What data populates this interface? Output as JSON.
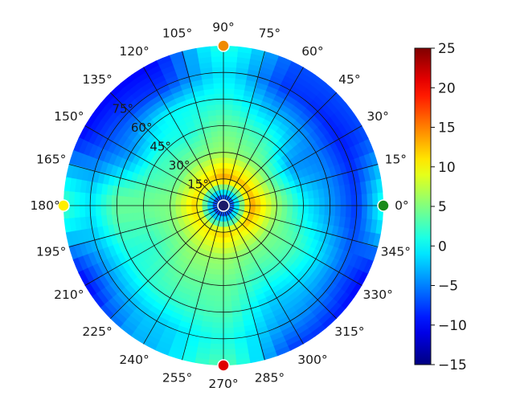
{
  "chart_data": {
    "type": "heatmap",
    "projection": "polar",
    "title": "",
    "angle_axis": {
      "unit": "deg",
      "tick_values": [
        0,
        15,
        30,
        45,
        60,
        75,
        90,
        105,
        120,
        135,
        150,
        165,
        180,
        195,
        210,
        225,
        240,
        255,
        270,
        285,
        300,
        315,
        330,
        345
      ],
      "tick_labels": [
        "0°",
        "15°",
        "30°",
        "45°",
        "60°",
        "75°",
        "90°",
        "105°",
        "120°",
        "135°",
        "150°",
        "165°",
        "180°",
        "195°",
        "210°",
        "225°",
        "240°",
        "255°",
        "270°",
        "285°",
        "300°",
        "315°",
        "330°",
        "345°"
      ]
    },
    "radial_axis": {
      "range": [
        0,
        90
      ],
      "tick_values": [
        15,
        30,
        45,
        60,
        75
      ],
      "tick_labels": [
        "15°",
        "30°",
        "45°",
        "60°",
        "75°"
      ],
      "label_angle_deg": 135
    },
    "grid": true,
    "colorbar": {
      "colormap": "jet",
      "range": [
        -15,
        25
      ],
      "tick_values": [
        -15,
        -10,
        -5,
        0,
        5,
        10,
        15,
        20,
        25
      ],
      "tick_labels": [
        "−15",
        "−10",
        "−5",
        "0",
        "5",
        "10",
        "15",
        "20",
        "25"
      ],
      "placement": "right"
    },
    "field_samples": {
      "description_note": "",
      "theta_deg": [
        0,
        30,
        60,
        90,
        120,
        150,
        180,
        210,
        240,
        270,
        300,
        330
      ],
      "r_deg": [
        0,
        15,
        30,
        45,
        60,
        75,
        90
      ],
      "values": [
        [
          -15,
          14,
          6,
          0,
          -4,
          -8,
          1
        ],
        [
          -15,
          13,
          4,
          -4,
          -5,
          -9,
          -7
        ],
        [
          -15,
          13,
          5,
          2,
          -3,
          -8,
          -7
        ],
        [
          -15,
          14,
          6,
          4,
          1,
          -1,
          1
        ],
        [
          -15,
          12,
          5,
          1,
          0,
          -8,
          -10
        ],
        [
          -15,
          11,
          4,
          2,
          -4,
          -7,
          -10
        ],
        [
          -15,
          12,
          5,
          4,
          4,
          -1,
          2
        ],
        [
          -15,
          11,
          5,
          2,
          1,
          -4,
          -10
        ],
        [
          -15,
          11,
          6,
          4,
          2,
          -2,
          -3
        ],
        [
          -15,
          12,
          6,
          4,
          3,
          1,
          3
        ],
        [
          -15,
          11,
          5,
          2,
          -2,
          -4,
          -8
        ],
        [
          -15,
          13,
          5,
          3,
          -1,
          -6,
          -10
        ]
      ]
    },
    "markers": [
      {
        "theta_deg": 0,
        "r_deg": 90,
        "color": "#1a8a1a"
      },
      {
        "theta_deg": 90,
        "r_deg": 90,
        "color": "#f08a00"
      },
      {
        "theta_deg": 180,
        "r_deg": 90,
        "color": "#ffee00"
      },
      {
        "theta_deg": 270,
        "r_deg": 90,
        "color": "#e00000"
      },
      {
        "theta_deg": 0,
        "r_deg": 0,
        "color": "#1a1a6a"
      }
    ]
  }
}
